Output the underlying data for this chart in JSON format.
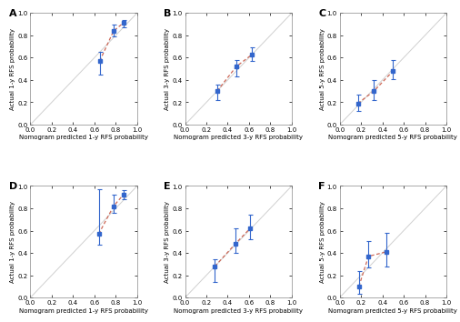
{
  "subplots": [
    {
      "label": "A",
      "xlabel": "Nomogram predicted 1-y RFS probability",
      "ylabel": "Actual 1-y RFS probability",
      "xlim": [
        0.0,
        1.0
      ],
      "ylim": [
        0.0,
        1.0
      ],
      "xticks": [
        0.0,
        0.2,
        0.4,
        0.6,
        0.8,
        1.0
      ],
      "yticks": [
        0.0,
        0.2,
        0.4,
        0.6,
        0.8,
        1.0
      ],
      "points_x": [
        0.65,
        0.78,
        0.87
      ],
      "points_y": [
        0.57,
        0.84,
        0.91
      ],
      "yerr_low": [
        0.12,
        0.05,
        0.04
      ],
      "yerr_high": [
        0.08,
        0.06,
        0.03
      ],
      "line_color": "#cc6655",
      "point_color": "#3366cc",
      "diagonal_color": "#d0d0d0"
    },
    {
      "label": "B",
      "xlabel": "Nomogram predicted 3-y RFS probability",
      "ylabel": "Actual 3-y RFS probability",
      "xlim": [
        0.0,
        1.0
      ],
      "ylim": [
        0.0,
        1.0
      ],
      "xticks": [
        0.0,
        0.2,
        0.4,
        0.6,
        0.8,
        1.0
      ],
      "yticks": [
        0.0,
        0.2,
        0.4,
        0.6,
        0.8,
        1.0
      ],
      "points_x": [
        0.3,
        0.48,
        0.63
      ],
      "points_y": [
        0.3,
        0.52,
        0.63
      ],
      "yerr_low": [
        0.08,
        0.09,
        0.06
      ],
      "yerr_high": [
        0.06,
        0.06,
        0.06
      ],
      "line_color": "#cc6655",
      "point_color": "#3366cc",
      "diagonal_color": "#d0d0d0"
    },
    {
      "label": "C",
      "xlabel": "Nomogram predicted 5-y RFS probability",
      "ylabel": "Actual 5-y RFS probability",
      "xlim": [
        0.0,
        1.0
      ],
      "ylim": [
        0.0,
        1.0
      ],
      "xticks": [
        0.0,
        0.2,
        0.4,
        0.6,
        0.8,
        1.0
      ],
      "yticks": [
        0.0,
        0.2,
        0.4,
        0.6,
        0.8,
        1.0
      ],
      "points_x": [
        0.17,
        0.32,
        0.5
      ],
      "points_y": [
        0.19,
        0.3,
        0.48
      ],
      "yerr_low": [
        0.07,
        0.08,
        0.07
      ],
      "yerr_high": [
        0.08,
        0.1,
        0.1
      ],
      "line_color": "#cc6655",
      "point_color": "#3366cc",
      "diagonal_color": "#d0d0d0"
    },
    {
      "label": "D",
      "xlabel": "Nomogram predicted 1-y RFS probability",
      "ylabel": "Actual 1-y RFS probability",
      "xlim": [
        0.0,
        1.0
      ],
      "ylim": [
        0.0,
        1.0
      ],
      "xticks": [
        0.0,
        0.2,
        0.4,
        0.6,
        0.8,
        1.0
      ],
      "yticks": [
        0.0,
        0.2,
        0.4,
        0.6,
        0.8,
        1.0
      ],
      "points_x": [
        0.64,
        0.78,
        0.87
      ],
      "points_y": [
        0.57,
        0.82,
        0.92
      ],
      "yerr_low": [
        0.1,
        0.06,
        0.04
      ],
      "yerr_high": [
        0.4,
        0.1,
        0.04
      ],
      "line_color": "#cc6655",
      "point_color": "#3366cc",
      "diagonal_color": "#d0d0d0"
    },
    {
      "label": "E",
      "xlabel": "Nomogram predicted 3-y RFS probability",
      "ylabel": "Actual 3-y RFS probability",
      "xlim": [
        0.0,
        1.0
      ],
      "ylim": [
        0.0,
        1.0
      ],
      "xticks": [
        0.0,
        0.2,
        0.4,
        0.6,
        0.8,
        1.0
      ],
      "yticks": [
        0.0,
        0.2,
        0.4,
        0.6,
        0.8,
        1.0
      ],
      "points_x": [
        0.28,
        0.47,
        0.61
      ],
      "points_y": [
        0.28,
        0.48,
        0.62
      ],
      "yerr_low": [
        0.14,
        0.08,
        0.1
      ],
      "yerr_high": [
        0.06,
        0.14,
        0.12
      ],
      "line_color": "#cc6655",
      "point_color": "#3366cc",
      "diagonal_color": "#d0d0d0"
    },
    {
      "label": "F",
      "xlabel": "Nomogram predicted 5-y RFS probability",
      "ylabel": "Actual 5-y RFS probability",
      "xlim": [
        0.0,
        1.0
      ],
      "ylim": [
        0.0,
        1.0
      ],
      "xticks": [
        0.0,
        0.2,
        0.4,
        0.6,
        0.8,
        1.0
      ],
      "yticks": [
        0.0,
        0.2,
        0.4,
        0.6,
        0.8,
        1.0
      ],
      "points_x": [
        0.18,
        0.27,
        0.44
      ],
      "points_y": [
        0.1,
        0.37,
        0.41
      ],
      "yerr_low": [
        0.07,
        0.1,
        0.13
      ],
      "yerr_high": [
        0.14,
        0.14,
        0.17
      ],
      "line_color": "#cc6655",
      "point_color": "#3366cc",
      "diagonal_color": "#d0d0d0"
    }
  ],
  "background_color": "#ffffff",
  "tick_fontsize": 5.0,
  "label_fontsize": 5.0,
  "panel_label_fontsize": 8,
  "axes_border_color": "#888888"
}
